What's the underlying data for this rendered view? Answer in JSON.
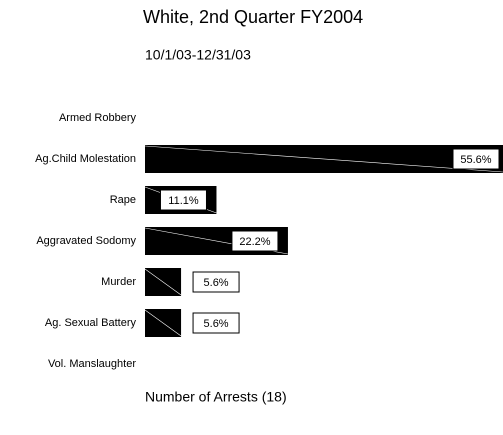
{
  "chart_data": {
    "type": "bar",
    "orientation": "horizontal",
    "title": "White, 2nd Quarter FY2004",
    "subtitle": "10/1/03-12/31/03",
    "x_label": "Number of Arrests (18)",
    "categories": [
      "Armed Robbery",
      "Ag.Child Molestation",
      "Rape",
      "Aggravated Sodomy",
      "Murder",
      "Ag. Sexual Battery",
      "Vol. Manslaughter"
    ],
    "values": [
      0,
      55.6,
      11.1,
      22.2,
      5.6,
      5.6,
      0
    ],
    "value_labels": [
      null,
      "55.6%",
      "11.1%",
      "22.2%",
      "5.6%",
      "5.6%",
      null
    ],
    "color": "#000000"
  }
}
